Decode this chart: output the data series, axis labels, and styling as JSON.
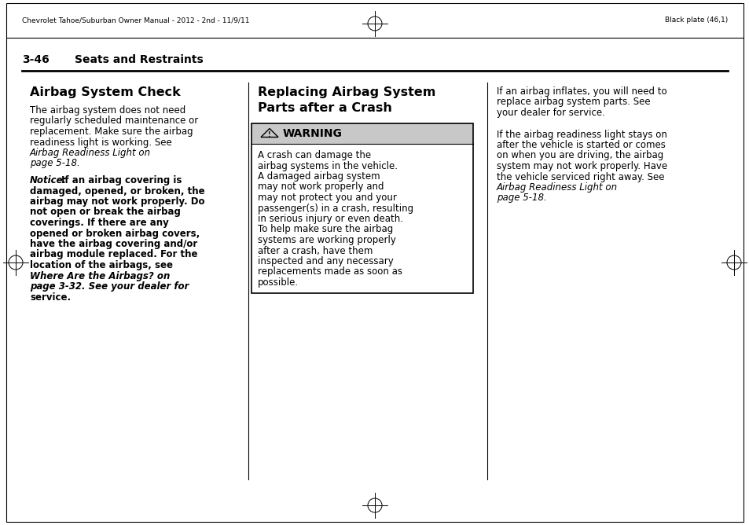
{
  "bg_color": "#ffffff",
  "header_text_left": "Chevrolet Tahoe/Suburban Owner Manual - 2012 - 2nd - 11/9/11",
  "header_text_right": "Black plate (46,1)",
  "section_label": "3-46",
  "section_title": "Seats and Restraints",
  "col1_heading": "Airbag System Check",
  "col1_para1_lines": [
    "The airbag system does not need",
    "regularly scheduled maintenance or",
    "replacement. Make sure the airbag",
    "readiness light is working. See",
    "Airbag Readiness Light on",
    "page 5-18."
  ],
  "col1_para1_italic": [
    false,
    false,
    false,
    false,
    true,
    true
  ],
  "col1_notice_label": "Notice:",
  "col1_para2_lines": [
    "If an airbag covering is",
    "damaged, opened, or broken, the",
    "airbag may not work properly. Do",
    "not open or break the airbag",
    "coverings. If there are any",
    "opened or broken airbag covers,",
    "have the airbag covering and/or",
    "airbag module replaced. For the",
    "location of the airbags, see",
    "Where Are the Airbags? on",
    "page 3-32. See your dealer for",
    "service."
  ],
  "col1_para2_italic": [
    false,
    false,
    false,
    false,
    false,
    false,
    false,
    false,
    false,
    true,
    true,
    false
  ],
  "col2_heading1": "Replacing Airbag System",
  "col2_heading2": "Parts after a Crash",
  "warning_title": "WARNING",
  "warning_body_lines": [
    "A crash can damage the",
    "airbag systems in the vehicle.",
    "A damaged airbag system",
    "may not work properly and",
    "may not protect you and your",
    "passenger(s) in a crash, resulting",
    "in serious injury or even death.",
    "To help make sure the airbag",
    "systems are working properly",
    "after a crash, have them",
    "inspected and any necessary",
    "replacements made as soon as",
    "possible."
  ],
  "col3_para1_lines": [
    "If an airbag inflates, you will need to",
    "replace airbag system parts. See",
    "your dealer for service."
  ],
  "col3_para2_lines": [
    "If the airbag readiness light stays on",
    "after the vehicle is started or comes",
    "on when you are driving, the airbag",
    "system may not work properly. Have",
    "the vehicle serviced right away. See",
    "Airbag Readiness Light on",
    "page 5-18."
  ],
  "col3_para2_italic": [
    false,
    false,
    false,
    false,
    false,
    true,
    true
  ],
  "warn_gray": "#c8c8c8",
  "line_color": "#000000",
  "text_color": "#000000"
}
